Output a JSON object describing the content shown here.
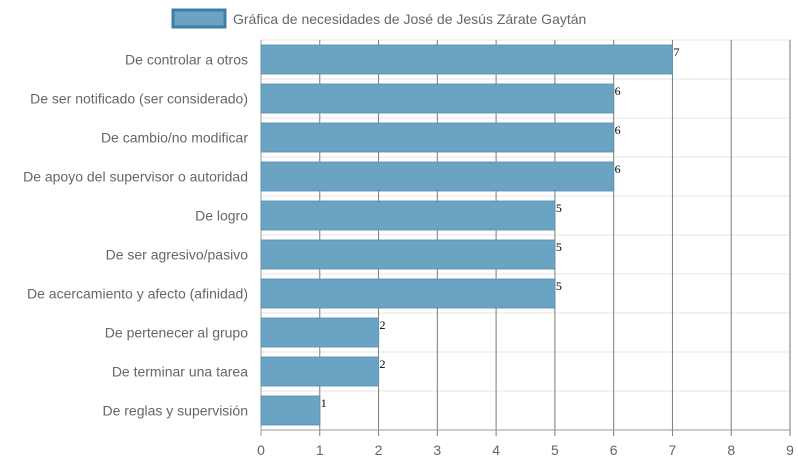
{
  "chart_data": {
    "type": "bar",
    "orientation": "horizontal",
    "title": "",
    "legend": {
      "label": "Gráfica de necesidades de José de Jesús Zárate Gaytán",
      "placement": "top-center"
    },
    "categories": [
      "De controlar a otros",
      "De ser notificado (ser considerado)",
      "De cambio/no modificar",
      "De apoyo del supervisor o autoridad",
      "De logro",
      "De ser agresivo/pasivo",
      "De acercamiento y afecto (afinidad)",
      "De pertenecer al grupo",
      "De terminar una tarea",
      "De reglas y supervisión"
    ],
    "series": [
      {
        "name": "Gráfica de necesidades de José de Jesús Zárate Gaytán",
        "values": [
          7,
          6,
          6,
          6,
          5,
          5,
          5,
          2,
          2,
          1
        ]
      }
    ],
    "xlim": [
      0,
      9
    ],
    "x_ticks": [
      "0",
      "1",
      "2",
      "3",
      "4",
      "5",
      "6",
      "7",
      "8",
      "9"
    ],
    "grid": true,
    "colors": {
      "bar_fill": "#6ba4c2",
      "bar_border": "#5a93b3",
      "legend_border": "#3e7ea3"
    }
  }
}
